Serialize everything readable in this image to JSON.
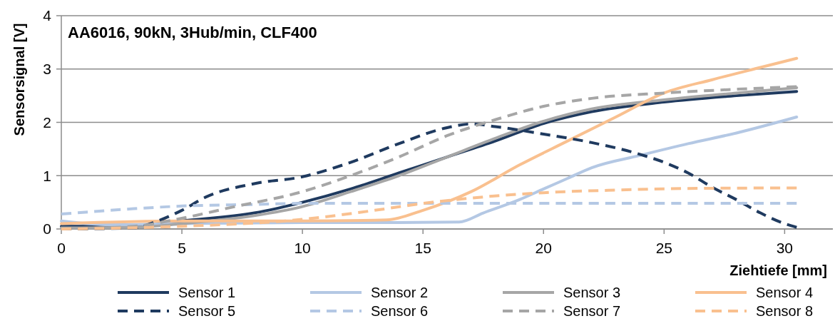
{
  "chart_data": {
    "type": "line",
    "title": "AA6016, 90kN, 3Hub/min, CLF400",
    "xlabel": "Ziehtiefe [mm]",
    "ylabel": "Sensorsignal [V]",
    "xlim": [
      0,
      32
    ],
    "xticks": [
      0,
      5,
      10,
      15,
      20,
      25,
      30
    ],
    "ylim": [
      0,
      4
    ],
    "yticks": [
      0,
      1,
      2,
      3,
      4
    ],
    "grid": "y",
    "legend": "bottom",
    "line_style": "solid",
    "marker": "none",
    "series": [
      {
        "name": "Sensor 1",
        "color": "#1f3a5f",
        "x": [
          0,
          3,
          5,
          8,
          10,
          12,
          14,
          16,
          18,
          20,
          22,
          25,
          28,
          30.5
        ],
        "values": [
          0.05,
          0.05,
          0.15,
          0.3,
          0.5,
          0.75,
          1.05,
          1.35,
          1.65,
          1.98,
          2.2,
          2.38,
          2.5,
          2.58
        ]
      },
      {
        "name": "Sensor 2",
        "color": "#b4c8e4",
        "x": [
          0,
          2,
          5,
          10,
          14,
          16.5,
          17.5,
          19,
          20,
          21,
          22,
          24,
          26,
          28,
          30.5
        ],
        "values": [
          0.15,
          0.08,
          0.1,
          0.12,
          0.12,
          0.13,
          0.3,
          0.55,
          0.75,
          0.95,
          1.15,
          1.38,
          1.6,
          1.8,
          2.1
        ]
      },
      {
        "name": "Sensor 3",
        "color": "#a6a6a6",
        "x": [
          0,
          3,
          5,
          8,
          10,
          12,
          14,
          16,
          18,
          20,
          22,
          25,
          28,
          30.5
        ],
        "values": [
          0.02,
          0.03,
          0.1,
          0.25,
          0.42,
          0.7,
          1.0,
          1.35,
          1.7,
          2.02,
          2.25,
          2.42,
          2.55,
          2.65
        ]
      },
      {
        "name": "Sensor 4",
        "color": "#f9c08f",
        "x": [
          0,
          5,
          10,
          13.5,
          15,
          17,
          19,
          21,
          23,
          25,
          27,
          29,
          30.5
        ],
        "values": [
          0.1,
          0.15,
          0.15,
          0.17,
          0.35,
          0.7,
          1.2,
          1.65,
          2.1,
          2.55,
          2.8,
          3.03,
          3.2
        ]
      },
      {
        "name": "Sensor 5",
        "color": "#1f3a5f",
        "line_style": "dashed",
        "x": [
          0,
          3,
          4,
          5,
          6,
          8,
          10,
          12,
          14,
          16,
          17,
          18,
          20,
          22,
          24,
          25,
          26,
          27,
          28,
          29,
          30,
          30.5
        ],
        "values": [
          0,
          0.02,
          0.15,
          0.35,
          0.6,
          0.85,
          0.98,
          1.25,
          1.6,
          1.9,
          1.97,
          1.92,
          1.78,
          1.62,
          1.4,
          1.25,
          1.05,
          0.78,
          0.55,
          0.3,
          0.1,
          0.03
        ]
      },
      {
        "name": "Sensor 6",
        "color": "#b4c8e4",
        "line_style": "dashed",
        "x": [
          0,
          3,
          5,
          8,
          10,
          15,
          20,
          30.5
        ],
        "values": [
          0.28,
          0.38,
          0.43,
          0.46,
          0.48,
          0.48,
          0.48,
          0.48
        ]
      },
      {
        "name": "Sensor 7",
        "color": "#a6a6a6",
        "line_style": "dashed",
        "x": [
          0,
          3,
          5,
          7,
          10,
          12,
          14,
          16,
          18,
          20,
          22,
          25,
          28,
          30.5
        ],
        "values": [
          0,
          0.05,
          0.2,
          0.4,
          0.7,
          1.0,
          1.35,
          1.75,
          2.05,
          2.3,
          2.45,
          2.55,
          2.62,
          2.67
        ]
      },
      {
        "name": "Sensor 8",
        "color": "#f9c08f",
        "line_style": "dashed",
        "x": [
          0,
          5,
          10,
          13,
          15,
          17,
          20,
          23,
          26,
          30.5
        ],
        "values": [
          0,
          0.05,
          0.18,
          0.35,
          0.48,
          0.58,
          0.68,
          0.73,
          0.76,
          0.77
        ]
      }
    ]
  }
}
